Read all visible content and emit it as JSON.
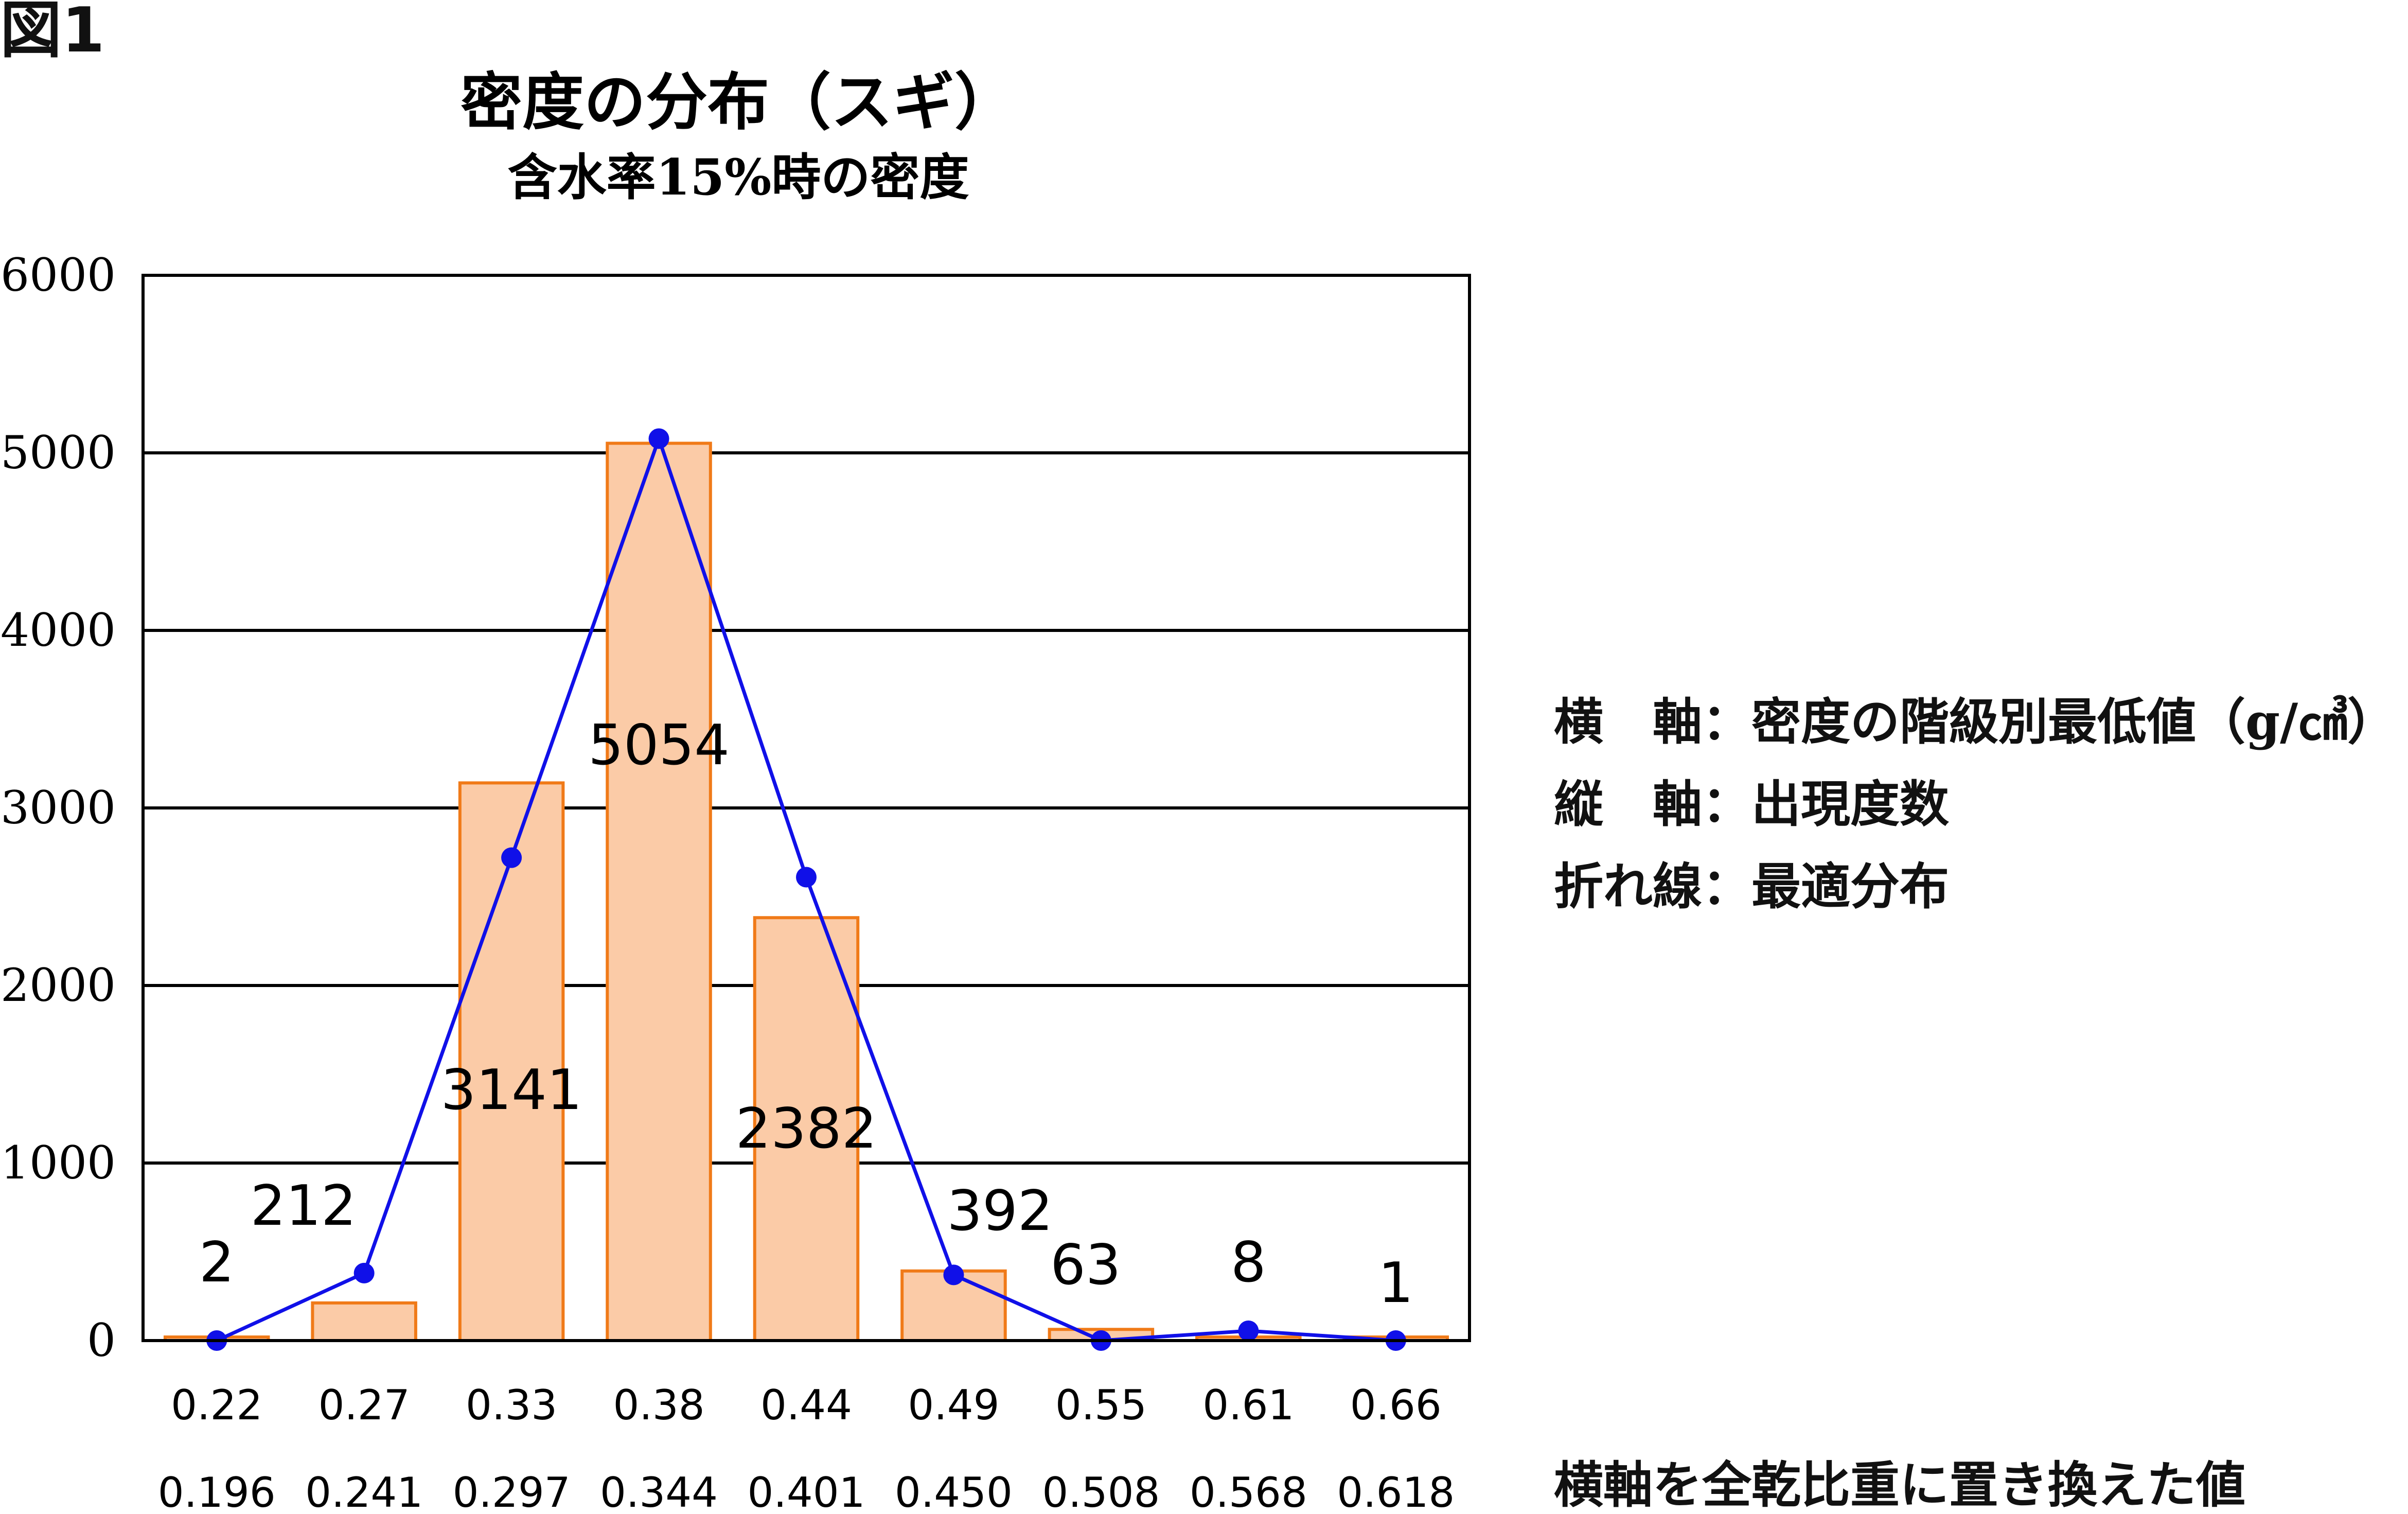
{
  "figure_label": "図1",
  "legend": {
    "line1": "横　軸：密度の階級別最低値（g/㎤）",
    "line2": "縦　軸：出現度数",
    "line3": "折れ線：最適分布"
  },
  "axis_note": "横軸を全乾比重に置き換えた値",
  "colors": {
    "bar_fill": "#FBCBA7",
    "bar_stroke": "#F07A18",
    "line": "#1010E8",
    "grid": "#000000"
  },
  "chart_data": {
    "type": "bar",
    "title": "密度の分布（スギ）",
    "subtitle": "含水率15%時の密度",
    "categories": [
      "0.22",
      "0.27",
      "0.33",
      "0.38",
      "0.44",
      "0.49",
      "0.55",
      "0.61",
      "0.66"
    ],
    "secondary_categories": [
      "0.196",
      "0.241",
      "0.297",
      "0.344",
      "0.401",
      "0.450",
      "0.508",
      "0.568",
      "0.618"
    ],
    "series": [
      {
        "type": "bar",
        "values": [
          2,
          212,
          3141,
          5054,
          2382,
          392,
          63,
          8,
          1
        ]
      },
      {
        "type": "line",
        "values": [
          0,
          380,
          2720,
          5080,
          2610,
          370,
          0,
          55,
          0
        ]
      }
    ],
    "data_labels": [
      "2",
      "212",
      "3141",
      "5054",
      "2382",
      "392",
      "63",
      "8",
      "1"
    ],
    "y_ticks": [
      "0",
      "1000",
      "2000",
      "3000",
      "4000",
      "5000",
      "6000"
    ],
    "ylim": [
      0,
      6000
    ],
    "grid": true
  }
}
